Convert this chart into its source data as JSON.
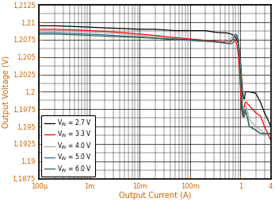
{
  "title": "",
  "xlabel": "Output Current (A)",
  "ylabel": "Output Voltage (V)",
  "xlim": [
    0.0001,
    4
  ],
  "ylim": [
    1.1875,
    1.2125
  ],
  "yticks": [
    1.1875,
    1.19,
    1.1925,
    1.195,
    1.1975,
    1.2,
    1.2025,
    1.205,
    1.2075,
    1.21,
    1.2125
  ],
  "xtick_vals": [
    0.0001,
    0.001,
    0.01,
    0.1,
    1,
    4
  ],
  "xtick_labels": [
    "100μ",
    "1m",
    "10m",
    "100m",
    "1",
    "4"
  ],
  "legend_labels": [
    "V$_{IN}$ = 2.7 V",
    "V$_{IN}$ = 3.3 V",
    "V$_{IN}$ = 4.0 V",
    "V$_{IN}$ = 5.0 V",
    "V$_{IN}$ = 6.0 V"
  ],
  "legend_colors": [
    "black",
    "red",
    "#aaaaaa",
    "#336699",
    "#336644"
  ],
  "axis_label_color": "#cc6600",
  "tick_label_color": "#cc6600",
  "background_color": "white",
  "grid_major_color": "#000000",
  "grid_minor_color": "#000000",
  "curves": {
    "vin_27": {
      "color": "black",
      "x": [
        0.0001,
        0.0002,
        0.0005,
        0.001,
        0.002,
        0.005,
        0.01,
        0.02,
        0.05,
        0.1,
        0.15,
        0.2,
        0.3,
        0.4,
        0.5,
        0.6,
        0.65,
        0.7,
        0.75,
        0.8,
        0.85,
        0.9,
        0.95,
        1.0,
        1.05,
        1.1,
        1.15,
        1.2,
        1.25,
        1.3,
        1.4,
        1.5,
        2.0,
        2.5,
        3.0,
        3.5,
        4.0
      ],
      "y": [
        1.2095,
        1.2095,
        1.2094,
        1.2093,
        1.2092,
        1.2091,
        1.209,
        1.209,
        1.2088,
        1.2088,
        1.2088,
        1.2088,
        1.2086,
        1.2085,
        1.2085,
        1.2084,
        1.2083,
        1.2082,
        1.208,
        1.2078,
        1.2075,
        1.207,
        1.206,
        1.2045,
        1.202,
        1.2,
        1.199,
        1.199,
        1.2,
        1.2,
        1.2,
        1.2,
        1.1998,
        1.1985,
        1.197,
        1.196,
        1.195
      ]
    },
    "vin_33": {
      "color": "red",
      "x": [
        0.0001,
        0.0002,
        0.0005,
        0.001,
        0.002,
        0.005,
        0.01,
        0.02,
        0.05,
        0.1,
        0.15,
        0.2,
        0.3,
        0.4,
        0.5,
        0.6,
        0.65,
        0.7,
        0.75,
        0.8,
        0.85,
        0.9,
        0.95,
        1.0,
        1.05,
        1.1,
        1.15,
        1.2,
        1.25,
        1.3,
        1.4,
        1.5,
        2.0,
        2.5,
        3.0,
        3.5,
        4.0
      ],
      "y": [
        1.209,
        1.209,
        1.2089,
        1.2088,
        1.2087,
        1.2085,
        1.2083,
        1.2081,
        1.2078,
        1.2076,
        1.2075,
        1.2074,
        1.2073,
        1.2072,
        1.2072,
        1.2073,
        1.2074,
        1.2075,
        1.2075,
        1.2073,
        1.2068,
        1.2055,
        1.2035,
        1.2005,
        1.1975,
        1.1965,
        1.197,
        1.198,
        1.1985,
        1.1985,
        1.1982,
        1.198,
        1.197,
        1.1965,
        1.195,
        1.194,
        1.193
      ]
    },
    "vin_40": {
      "color": "#aaaaaa",
      "x": [
        0.0001,
        0.0002,
        0.0005,
        0.001,
        0.002,
        0.005,
        0.01,
        0.02,
        0.05,
        0.1,
        0.15,
        0.2,
        0.3,
        0.4,
        0.5,
        0.6,
        0.65,
        0.7,
        0.75,
        0.8,
        0.85,
        0.9,
        0.95,
        1.0,
        1.05,
        1.1,
        1.15,
        1.2,
        1.25,
        1.3,
        1.4,
        1.5,
        2.0,
        2.5,
        3.0,
        3.5,
        4.0
      ],
      "y": [
        1.2088,
        1.2088,
        1.2087,
        1.2086,
        1.2085,
        1.2083,
        1.2081,
        1.2079,
        1.2076,
        1.2074,
        1.2073,
        1.2073,
        1.2072,
        1.2071,
        1.2071,
        1.2074,
        1.2078,
        1.208,
        1.2082,
        1.2082,
        1.208,
        1.2075,
        1.206,
        1.2035,
        1.2005,
        1.198,
        1.1975,
        1.1975,
        1.198,
        1.198,
        1.197,
        1.196,
        1.195,
        1.1945,
        1.194,
        1.194,
        1.194
      ]
    },
    "vin_50": {
      "color": "#336699",
      "x": [
        0.0001,
        0.0002,
        0.0005,
        0.001,
        0.002,
        0.005,
        0.01,
        0.02,
        0.05,
        0.1,
        0.15,
        0.2,
        0.3,
        0.4,
        0.5,
        0.6,
        0.65,
        0.7,
        0.75,
        0.8,
        0.85,
        0.9,
        0.95,
        1.0,
        1.05,
        1.1,
        1.15,
        1.2,
        1.25,
        1.3,
        1.4,
        1.5,
        2.0,
        2.5,
        3.0,
        3.5,
        4.0
      ],
      "y": [
        1.2085,
        1.2085,
        1.2084,
        1.2083,
        1.2082,
        1.208,
        1.2079,
        1.2077,
        1.2075,
        1.2074,
        1.2073,
        1.2073,
        1.2072,
        1.2071,
        1.207,
        1.207,
        1.2072,
        1.2076,
        1.208,
        1.2083,
        1.2082,
        1.2073,
        1.2055,
        1.2025,
        1.1993,
        1.197,
        1.1965,
        1.197,
        1.1975,
        1.197,
        1.196,
        1.195,
        1.1945,
        1.194,
        1.194,
        1.194,
        1.194
      ]
    },
    "vin_60": {
      "color": "#336644",
      "x": [
        0.0001,
        0.0002,
        0.0005,
        0.001,
        0.002,
        0.005,
        0.01,
        0.02,
        0.05,
        0.1,
        0.15,
        0.2,
        0.3,
        0.4,
        0.5,
        0.6,
        0.65,
        0.7,
        0.75,
        0.8,
        0.85,
        0.9,
        0.95,
        1.0,
        1.05,
        1.1,
        1.15,
        1.2,
        1.25,
        1.3,
        1.4,
        1.5,
        2.0,
        2.5,
        3.0,
        3.5,
        4.0
      ],
      "y": [
        1.2083,
        1.2083,
        1.2082,
        1.2081,
        1.208,
        1.2079,
        1.2078,
        1.2077,
        1.2076,
        1.2075,
        1.2074,
        1.2073,
        1.2072,
        1.2071,
        1.207,
        1.2069,
        1.2069,
        1.207,
        1.2073,
        1.2078,
        1.208,
        1.2075,
        1.2058,
        1.2028,
        1.1994,
        1.197,
        1.1963,
        1.1965,
        1.197,
        1.197,
        1.196,
        1.195,
        1.1945,
        1.194,
        1.194,
        1.194,
        1.194
      ]
    }
  }
}
